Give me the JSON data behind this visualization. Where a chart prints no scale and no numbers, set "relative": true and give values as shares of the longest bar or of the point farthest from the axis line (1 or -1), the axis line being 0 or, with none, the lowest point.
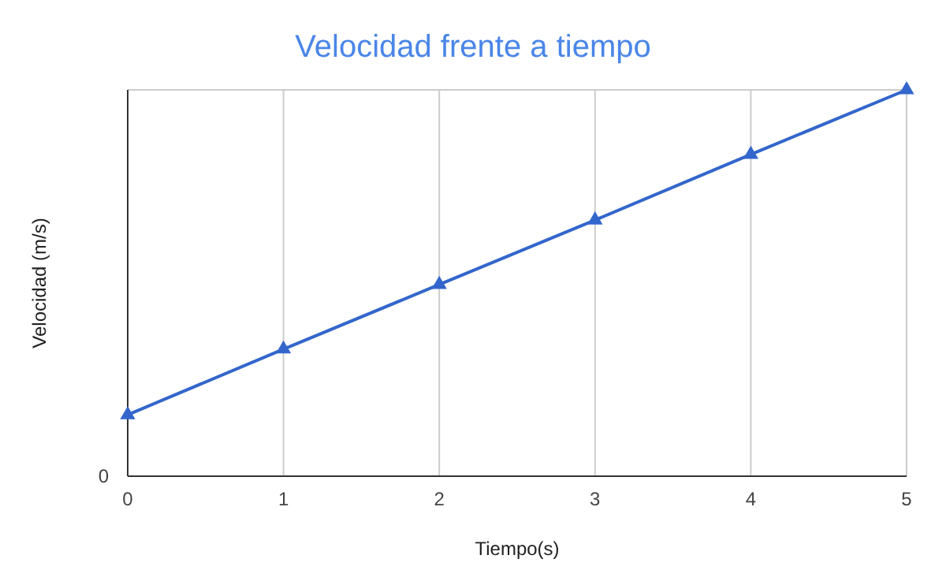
{
  "chart_data": {
    "type": "line",
    "title": "Velocidad frente a tiempo",
    "xlabel": "Tiempo(s)",
    "ylabel": "Velocidad (m/s)",
    "relative": true,
    "x": [
      0,
      1,
      2,
      3,
      4,
      5
    ],
    "xlim": [
      0,
      5
    ],
    "xticks": [
      0,
      1,
      2,
      3,
      4,
      5
    ],
    "series": [
      {
        "color": "#3366cc",
        "values": [
          0.159,
          0.329,
          0.496,
          0.663,
          0.833,
          1
        ]
      }
    ],
    "marker": "triangle",
    "line_style": "solid",
    "grid": "x",
    "annotations": [
      "0"
    ]
  }
}
